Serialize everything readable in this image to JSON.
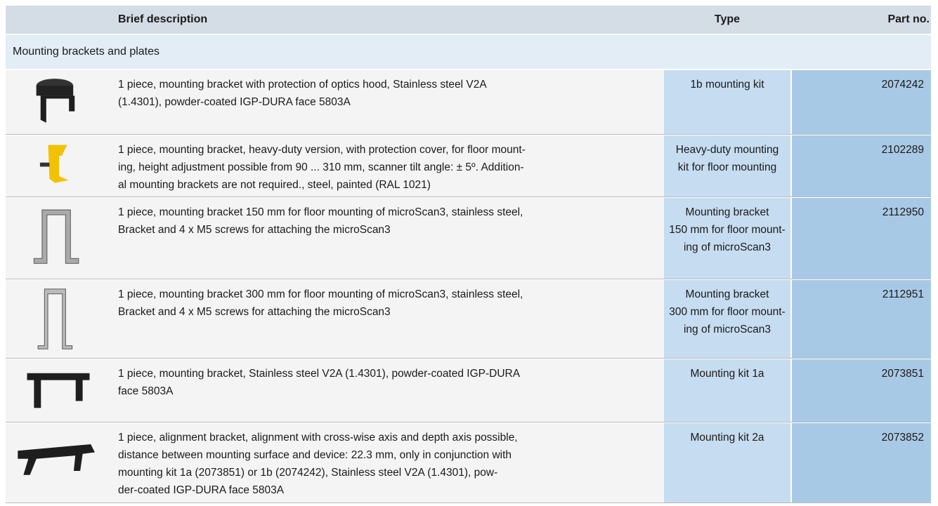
{
  "header": {
    "columns": [
      "Brief description",
      "Type",
      "Part no."
    ]
  },
  "section": "Mounting brackets and plates",
  "rows": [
    {
      "description": [
        "1 piece, mounting bracket with protection of optics hood, Stainless steel V2A",
        "(1.4301), powder-coated IGP-DURA face 5803A"
      ],
      "type": [
        "1b mounting kit"
      ],
      "part_no": "2074242"
    },
    {
      "description": [
        "1 piece, mounting bracket, heavy-duty version, with protection cover, for floor mount-",
        "ing, height adjustment possible from 90 ... 310 mm, scanner tilt angle: ± 5º. Addition-",
        "al mounting brackets are not required., steel, painted (RAL 1021)"
      ],
      "type": [
        "Heavy-duty mounting",
        "kit for floor mounting"
      ],
      "part_no": "2102289"
    },
    {
      "description": [
        "1 piece, mounting bracket 150 mm for floor mounting of microScan3, stainless steel,",
        "Bracket and 4 x M5 screws for attaching the microScan3"
      ],
      "type": [
        "Mounting bracket",
        "150 mm for floor mount-",
        "ing of microScan3"
      ],
      "part_no": "2112950"
    },
    {
      "description": [
        "1 piece, mounting bracket 300 mm for floor mounting of microScan3, stainless steel,",
        "Bracket and 4 x M5 screws for attaching the microScan3"
      ],
      "type": [
        "Mounting bracket",
        "300 mm for floor mount-",
        "ing of microScan3"
      ],
      "part_no": "2112951"
    },
    {
      "description": [
        "1 piece, mounting bracket, Stainless steel V2A (1.4301), powder-coated IGP-DURA",
        "face 5803A"
      ],
      "type": [
        "Mounting kit 1a"
      ],
      "part_no": "2073851"
    },
    {
      "description": [
        "1 piece, alignment bracket, alignment with cross-wise axis and depth axis possible,",
        "distance between mounting surface and device: 22.3 mm, only in conjunction with",
        "mounting kit 1a (2073851) or 1b (2074242), Stainless steel V2A (1.4301), pow-",
        "der-coated IGP-DURA face 5803A"
      ],
      "type": [
        "Mounting kit 2a"
      ],
      "part_no": "2073852"
    }
  ]
}
